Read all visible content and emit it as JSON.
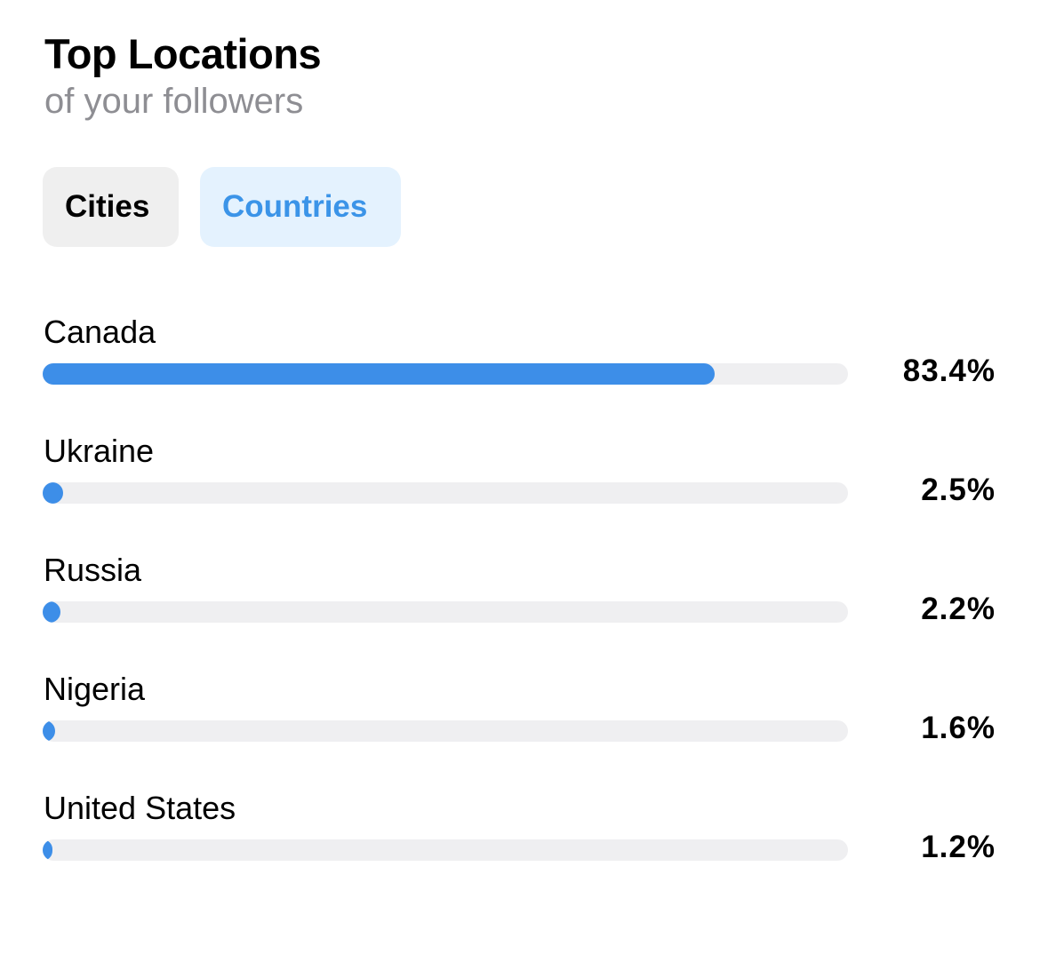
{
  "header": {
    "title": "Top Locations",
    "subtitle": "of your followers"
  },
  "tabs": [
    {
      "label": "Cities",
      "selected": false
    },
    {
      "label": "Countries",
      "selected": true
    }
  ],
  "colors": {
    "accent": "#3d8ee8",
    "selected_tab_bg": "#e4f2fe",
    "selected_tab_text": "#3b94e8",
    "unselected_tab_bg": "#efefef",
    "track": "#efeff1",
    "subtitle": "#8e8e93"
  },
  "locations": [
    {
      "name": "Canada",
      "percent_label": "83.4%",
      "percent": 83.4
    },
    {
      "name": "Ukraine",
      "percent_label": "2.5%",
      "percent": 2.5
    },
    {
      "name": "Russia",
      "percent_label": "2.2%",
      "percent": 2.2
    },
    {
      "name": "Nigeria",
      "percent_label": "1.6%",
      "percent": 1.6
    },
    {
      "name": "United States",
      "percent_label": "1.2%",
      "percent": 1.2
    }
  ]
}
